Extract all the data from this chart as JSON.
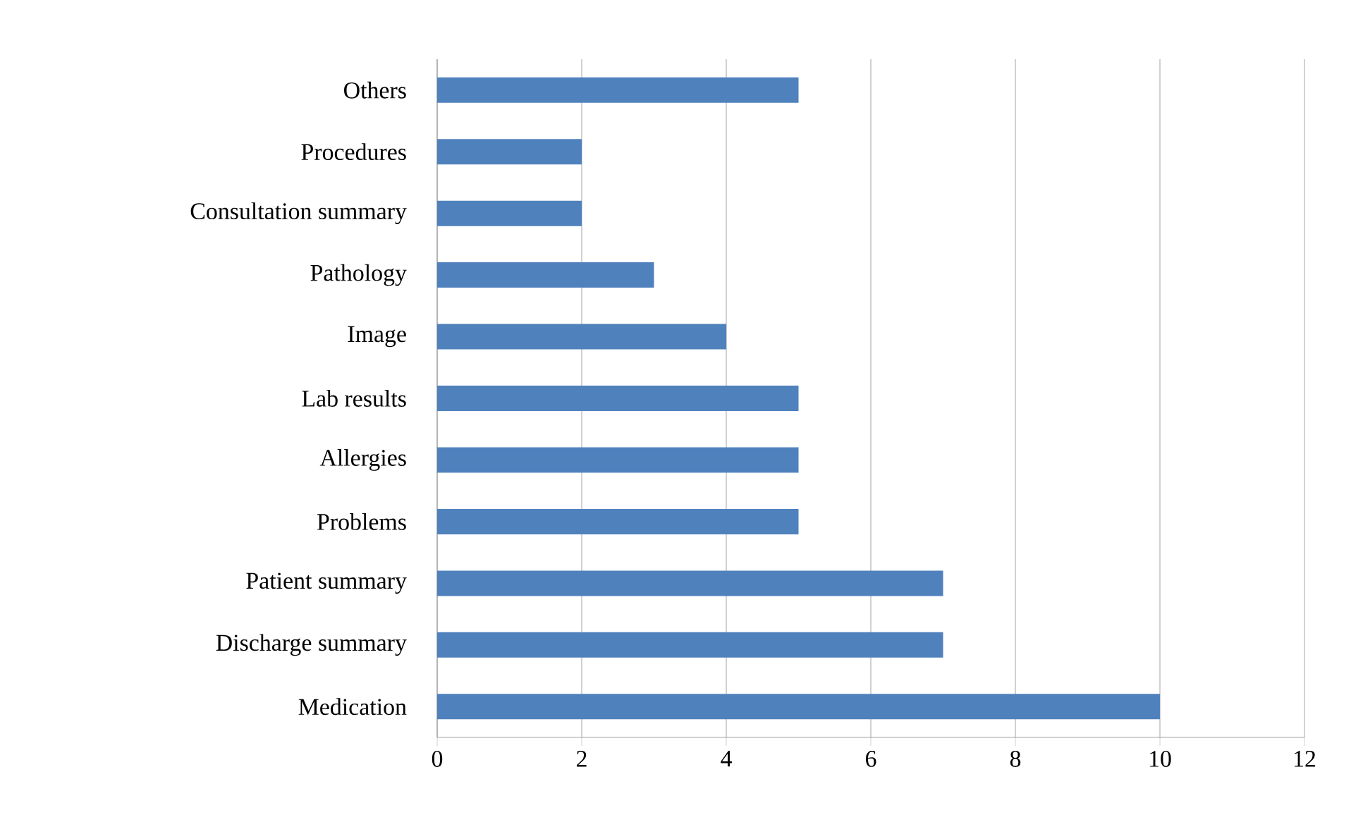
{
  "chart_data": {
    "type": "bar",
    "orientation": "horizontal",
    "categories": [
      "Others",
      "Procedures",
      "Consultation summary",
      "Pathology",
      "Image",
      "Lab results",
      "Allergies",
      "Problems",
      "Patient summary",
      "Discharge summary",
      "Medication"
    ],
    "values": [
      5,
      2,
      2,
      3,
      4,
      5,
      5,
      5,
      7,
      7,
      10
    ],
    "color": "#4f81bd",
    "xlim": [
      0,
      12
    ],
    "xticks": [
      0,
      2,
      4,
      6,
      8,
      10,
      12
    ],
    "grid": "x"
  }
}
